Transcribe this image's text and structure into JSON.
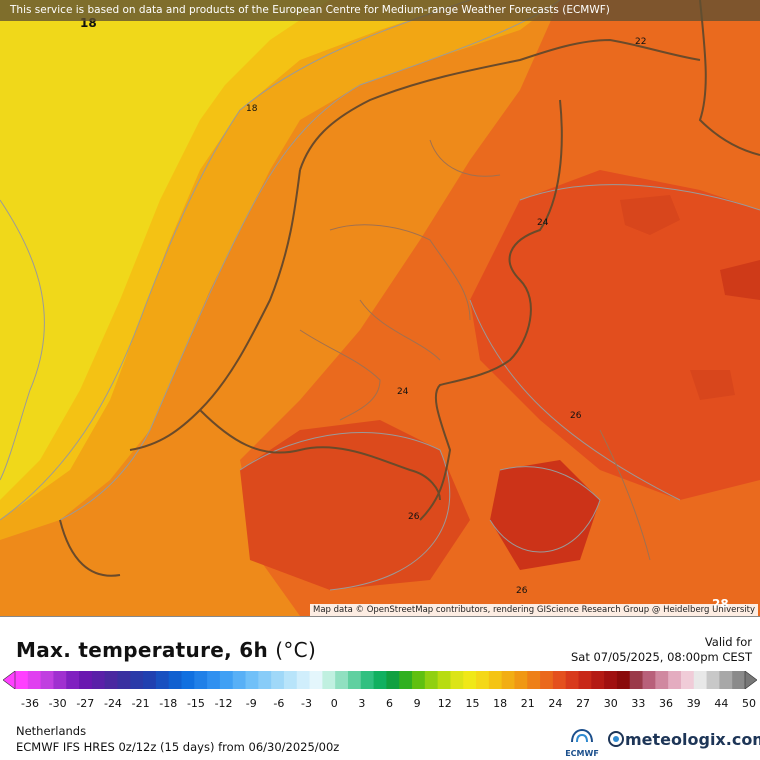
{
  "map": {
    "attribution_top": "This service is based on data and products of the European Centre for Medium-range Weather Forecasts (ECMWF)",
    "attribution_bottom": "Map data © OpenStreetMap contributors, rendering GIScience Research Group @ Heidelberg University",
    "contour_labels": [
      "18",
      "18",
      "22",
      "24",
      "24",
      "26",
      "26",
      "26",
      "28"
    ],
    "colors": {
      "sea_cool": "#f0d81a",
      "warm_1": "#f4c214",
      "warm_2": "#f2a614",
      "warm_3": "#ee8a1a",
      "hot_1": "#ea6a1e",
      "hot_2": "#e04c1e",
      "hot_3": "#cc3318"
    }
  },
  "legend": {
    "title": "Max. temperature, 6h",
    "unit": "(°C)",
    "valid_label": "Valid for",
    "valid_date": "Sat 07/05/2025, 08:00pm CEST",
    "tick_labels": [
      "-36",
      "-30",
      "-27",
      "-24",
      "-21",
      "-18",
      "-15",
      "-12",
      "-9",
      "-6",
      "-3",
      "0",
      "3",
      "6",
      "9",
      "12",
      "15",
      "18",
      "21",
      "24",
      "27",
      "30",
      "33",
      "36",
      "39",
      "44",
      "50"
    ]
  },
  "footer": {
    "region": "Netherlands",
    "model": "ECMWF IFS HRES 0z/12z (15 days) from 06/30/2025/00z",
    "ecmwf_logo_text": "ECMWF",
    "brand": "meteologix.com"
  }
}
